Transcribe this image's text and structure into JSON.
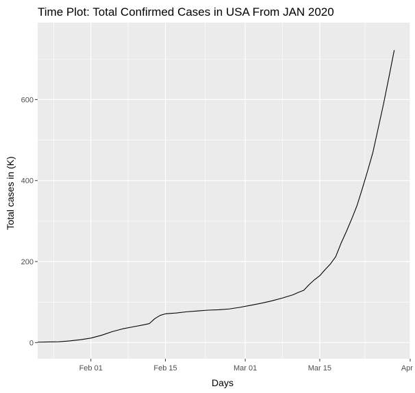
{
  "chart_data": {
    "type": "line",
    "title": "Time Plot: Total Confirmed Cases in USA From JAN 2020",
    "xlabel": "Days",
    "ylabel": "Total cases in (K)",
    "x_axis": {
      "kind": "date",
      "range": [
        "2020-01-22",
        "2020-04-01"
      ],
      "ticks": [
        {
          "date": "2020-02-01",
          "label": "Feb 01"
        },
        {
          "date": "2020-02-15",
          "label": "Feb 15"
        },
        {
          "date": "2020-03-01",
          "label": "Mar 01"
        },
        {
          "date": "2020-03-15",
          "label": "Mar 15"
        },
        {
          "date": "2020-04-01",
          "label": "Apr 0"
        }
      ]
    },
    "y_axis": {
      "range": [
        -40,
        790
      ],
      "ticks": [
        0,
        200,
        400,
        600
      ]
    },
    "grid": true,
    "series": [
      {
        "color": "#000000",
        "points": [
          [
            "2020-01-22",
            1
          ],
          [
            "2020-01-24",
            1.5
          ],
          [
            "2020-01-26",
            2
          ],
          [
            "2020-01-28",
            4
          ],
          [
            "2020-01-30",
            7
          ],
          [
            "2020-02-01",
            11
          ],
          [
            "2020-02-03",
            18
          ],
          [
            "2020-02-05",
            27
          ],
          [
            "2020-02-07",
            34
          ],
          [
            "2020-02-09",
            39
          ],
          [
            "2020-02-11",
            44
          ],
          [
            "2020-02-12",
            47
          ],
          [
            "2020-02-13",
            59
          ],
          [
            "2020-02-14",
            67
          ],
          [
            "2020-02-15",
            71
          ],
          [
            "2020-02-17",
            73
          ],
          [
            "2020-02-19",
            76
          ],
          [
            "2020-02-21",
            78
          ],
          [
            "2020-02-23",
            80
          ],
          [
            "2020-02-25",
            81
          ],
          [
            "2020-02-27",
            83
          ],
          [
            "2020-02-29",
            87
          ],
          [
            "2020-03-02",
            92
          ],
          [
            "2020-03-04",
            97
          ],
          [
            "2020-03-06",
            103
          ],
          [
            "2020-03-08",
            110
          ],
          [
            "2020-03-10",
            118
          ],
          [
            "2020-03-11",
            124
          ],
          [
            "2020-03-12",
            129
          ],
          [
            "2020-03-13",
            143
          ],
          [
            "2020-03-14",
            155
          ],
          [
            "2020-03-15",
            165
          ],
          [
            "2020-03-16",
            180
          ],
          [
            "2020-03-17",
            194
          ],
          [
            "2020-03-18",
            212
          ],
          [
            "2020-03-19",
            245
          ],
          [
            "2020-03-20",
            274
          ],
          [
            "2020-03-21",
            305
          ],
          [
            "2020-03-22",
            338
          ],
          [
            "2020-03-23",
            380
          ],
          [
            "2020-03-24",
            424
          ],
          [
            "2020-03-25",
            470
          ],
          [
            "2020-03-26",
            530
          ],
          [
            "2020-03-27",
            590
          ],
          [
            "2020-03-28",
            655
          ],
          [
            "2020-03-29",
            722
          ]
        ]
      }
    ]
  }
}
